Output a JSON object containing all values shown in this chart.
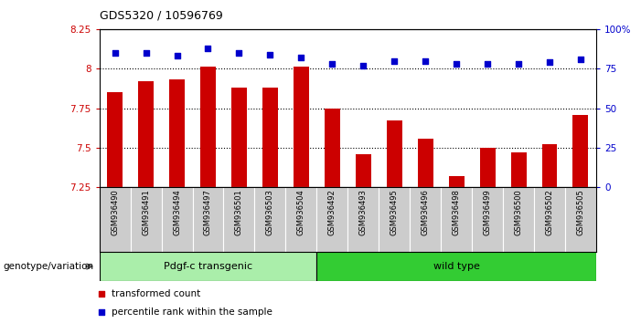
{
  "title": "GDS5320 / 10596769",
  "categories": [
    "GSM936490",
    "GSM936491",
    "GSM936494",
    "GSM936497",
    "GSM936501",
    "GSM936503",
    "GSM936504",
    "GSM936492",
    "GSM936493",
    "GSM936495",
    "GSM936496",
    "GSM936498",
    "GSM936499",
    "GSM936500",
    "GSM936502",
    "GSM936505"
  ],
  "bar_values": [
    7.85,
    7.92,
    7.93,
    8.01,
    7.88,
    7.88,
    8.01,
    7.75,
    7.46,
    7.67,
    7.56,
    7.32,
    7.5,
    7.47,
    7.52,
    7.71
  ],
  "percentile_values": [
    85,
    85,
    83,
    88,
    85,
    84,
    82,
    78,
    77,
    80,
    80,
    78,
    78,
    78,
    79,
    81
  ],
  "ylim_left": [
    7.25,
    8.25
  ],
  "ylim_right": [
    0,
    100
  ],
  "yticks_left": [
    7.25,
    7.5,
    7.75,
    8.0,
    8.25
  ],
  "ytick_labels_left": [
    "7.25",
    "7.5",
    "7.75",
    "8",
    "8.25"
  ],
  "yticks_right": [
    0,
    25,
    50,
    75,
    100
  ],
  "ytick_labels_right": [
    "0",
    "25",
    "50",
    "75",
    "100%"
  ],
  "bar_color": "#cc0000",
  "dot_color": "#0000cc",
  "grid_lines": [
    7.5,
    7.75,
    8.0
  ],
  "group1_label": "Pdgf-c transgenic",
  "group2_label": "wild type",
  "group1_color": "#aaeeaa",
  "group2_color": "#33cc33",
  "group1_count": 7,
  "group2_count": 9,
  "legend_bar_label": "transformed count",
  "legend_dot_label": "percentile rank within the sample",
  "xlabel_left": "genotype/variation",
  "tick_label_bg": "#cccccc"
}
